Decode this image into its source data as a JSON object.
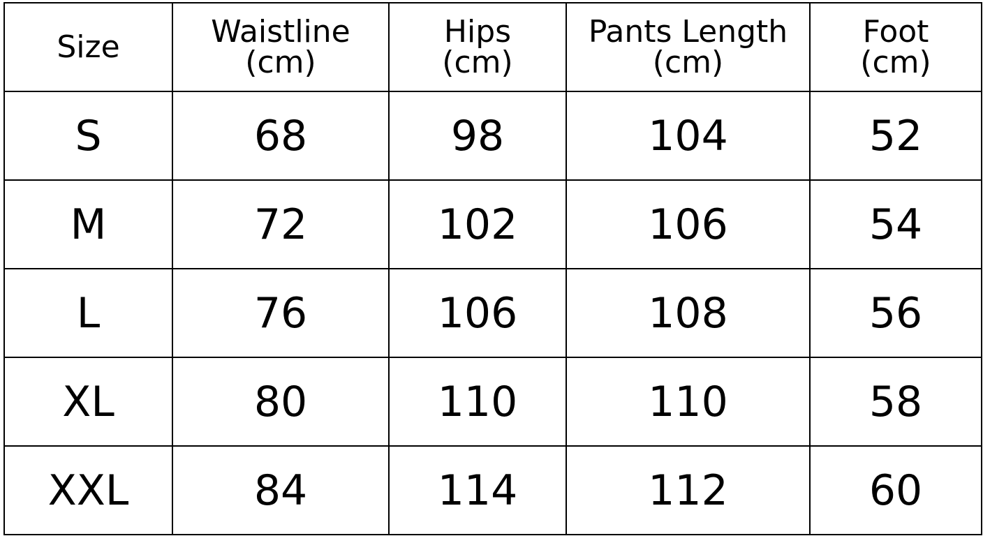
{
  "table": {
    "headers": [
      {
        "line1": "Size",
        "line2": ""
      },
      {
        "line1": "Waistline",
        "line2": "(cm)"
      },
      {
        "line1": "Hips",
        "line2": "(cm)"
      },
      {
        "line1": "Pants Length",
        "line2": "(cm)"
      },
      {
        "line1": "Foot",
        "line2": "(cm)"
      }
    ],
    "rows": [
      [
        "S",
        "68",
        "98",
        "104",
        "52"
      ],
      [
        "M",
        "72",
        "102",
        "106",
        "54"
      ],
      [
        "L",
        "76",
        "106",
        "108",
        "56"
      ],
      [
        "XL",
        "80",
        "110",
        "110",
        "58"
      ],
      [
        "XXL",
        "84",
        "114",
        "112",
        "60"
      ]
    ]
  }
}
